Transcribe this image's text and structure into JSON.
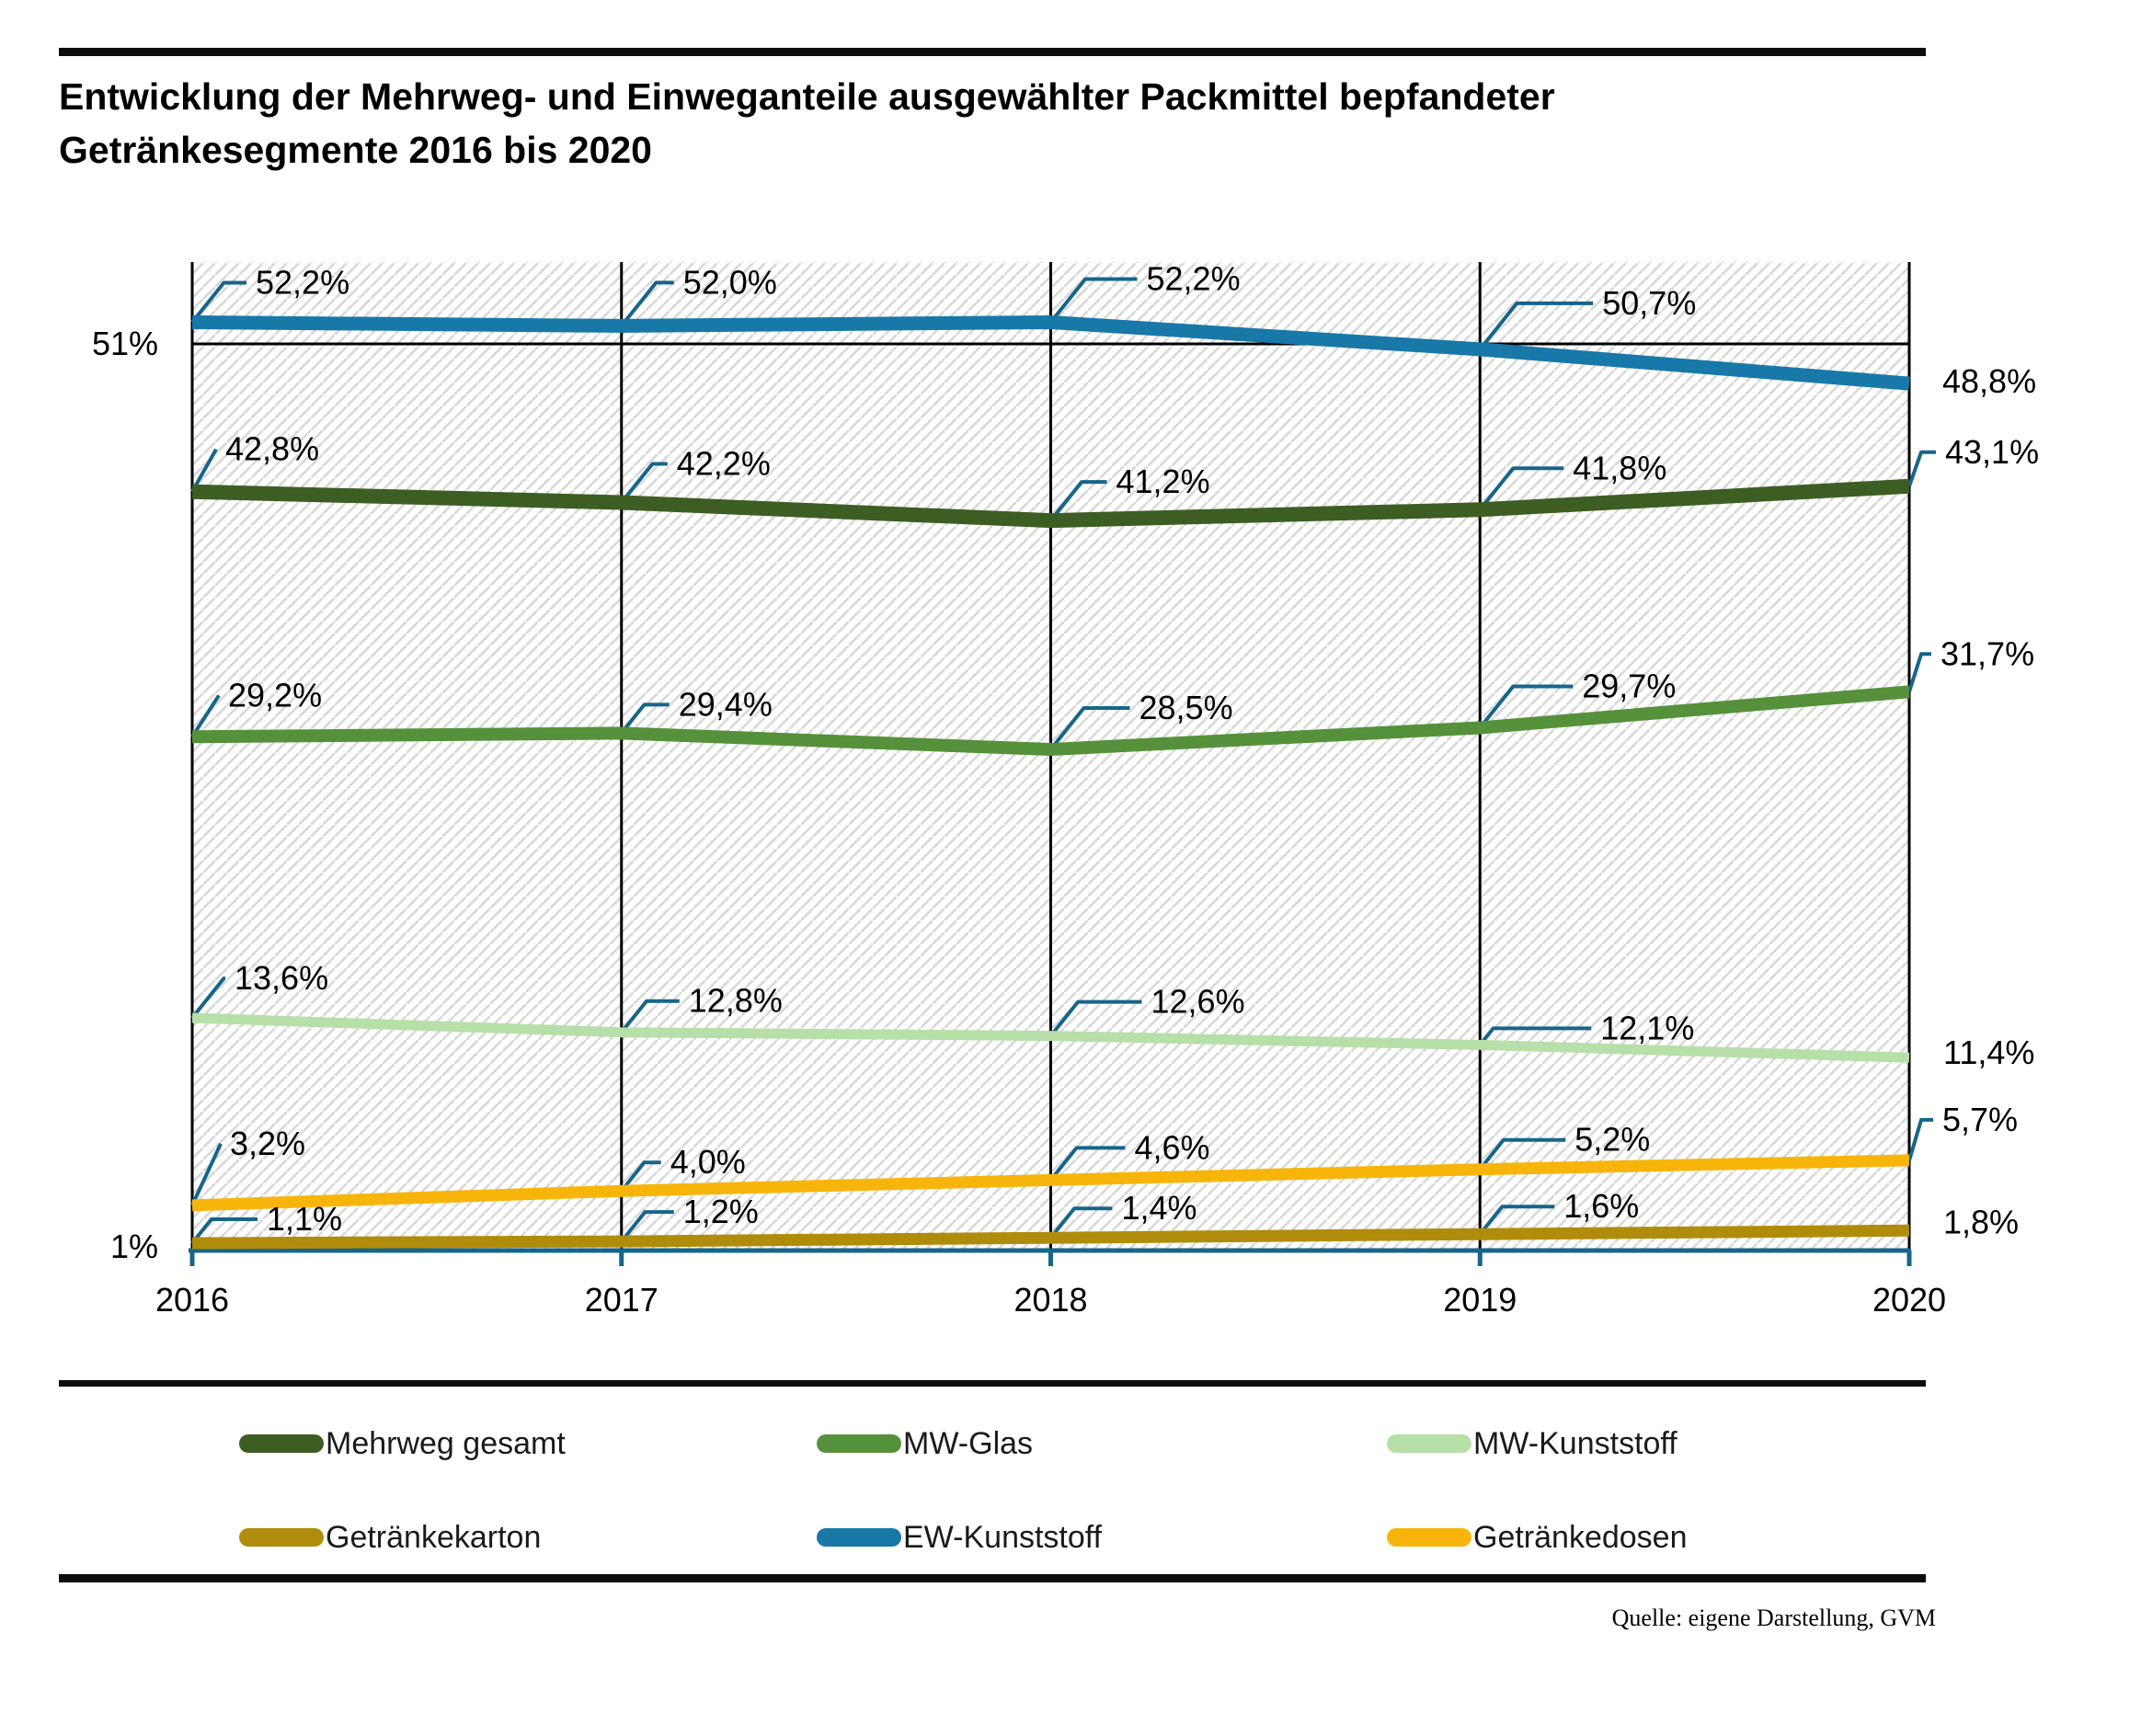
{
  "title": {
    "line1": "Entwicklung der Mehrweg- und Einweganteile ausgewählter Packmittel bepfandeter",
    "line2": "Getränkesegmente 2016 bis 2020"
  },
  "y_axis": {
    "top_label": "51%",
    "bottom_label": "1%"
  },
  "x_axis": {
    "years": [
      "2016",
      "2017",
      "2018",
      "2019",
      "2020"
    ]
  },
  "source": "Quelle: eigene Darstellung, GVM",
  "colors": {
    "axis_teal": "#16658a",
    "gridline_black": "#000000",
    "hatch_gray": "#d9d9d9"
  },
  "chart_data": {
    "type": "line",
    "x": [
      2016,
      2017,
      2018,
      2019,
      2020
    ],
    "title": "Entwicklung der Mehrweg- und Einweganteile ausgewählter Packmittel bepfandeter Getränkesegmente 2016 bis 2020",
    "ylim": [
      1,
      55.6
    ],
    "y_gridline_value": 51,
    "y_axis_labels_shown": [
      "51%",
      "1%"
    ],
    "grid": "vertical lines at each year, horizontal line at 51%",
    "legend_position": "bottom",
    "background": "diagonal hatch",
    "series": [
      {
        "name": "Mehrweg gesamt",
        "color": "#3c5e23",
        "values": [
          42.8,
          42.2,
          41.2,
          41.8,
          43.1
        ],
        "point_labels": [
          "42,8%",
          "42,2%",
          "41,2%",
          "41,8%",
          "43,1%"
        ]
      },
      {
        "name": "MW-Glas",
        "color": "#55913a",
        "values": [
          29.2,
          29.4,
          28.5,
          29.7,
          31.7
        ],
        "point_labels": [
          "29,2%",
          "29,4%",
          "28,5%",
          "29,7%",
          "31,7%"
        ]
      },
      {
        "name": "MW-Kunststoff",
        "color": "#b7dfa8",
        "values": [
          13.6,
          12.8,
          12.6,
          12.1,
          11.4
        ],
        "point_labels": [
          "13,6%",
          "12,8%",
          "12,6%",
          "12,1%",
          "11,4%"
        ]
      },
      {
        "name": "Getränkekarton",
        "color": "#b08c0c",
        "values": [
          1.1,
          1.2,
          1.4,
          1.6,
          1.8
        ],
        "point_labels": [
          "1,1%",
          "1,2%",
          "1,4%",
          "1,6%",
          "1,8%"
        ]
      },
      {
        "name": "EW-Kunststoff",
        "color": "#1878a8",
        "values": [
          52.2,
          52.0,
          52.2,
          50.7,
          48.8
        ],
        "point_labels": [
          "52,2%",
          "52,0%",
          "52,2%",
          "50,7%",
          "48,8%"
        ]
      },
      {
        "name": "Getränkedosen",
        "color": "#f7b50c",
        "values": [
          3.2,
          4.0,
          4.6,
          5.2,
          5.7
        ],
        "point_labels": [
          "3,2%",
          "4,0%",
          "4,6%",
          "5,2%",
          "5,7%"
        ]
      }
    ]
  }
}
